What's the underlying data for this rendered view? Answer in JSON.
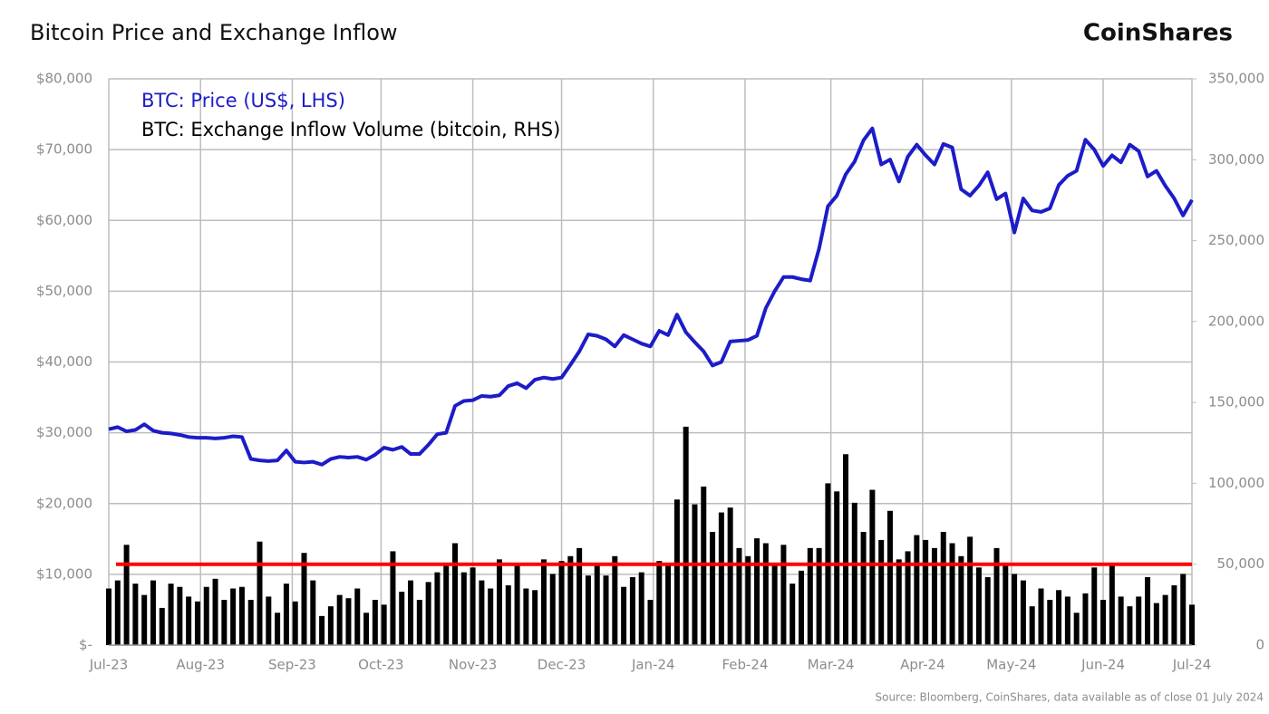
{
  "chart_data": {
    "type": "combo",
    "title": "Bitcoin Price and Exchange Inflow",
    "brand": "CoinShares",
    "source": "Source: Bloomberg, CoinShares, data available as of close 01 July 2024",
    "x": [
      0,
      3,
      6,
      9,
      12,
      15,
      18,
      21,
      24,
      27,
      30,
      33,
      36,
      39,
      42,
      45,
      48,
      51,
      54,
      57,
      60,
      63,
      66,
      69,
      72,
      75,
      78,
      81,
      84,
      87,
      90,
      93,
      96,
      99,
      102,
      105,
      108,
      111,
      114,
      117,
      120,
      123,
      126,
      129,
      132,
      135,
      138,
      141,
      144,
      147,
      150,
      153,
      156,
      159,
      162,
      165,
      168,
      171,
      174,
      177,
      180,
      183,
      186,
      189,
      192,
      195,
      198,
      201,
      204,
      207,
      210,
      213,
      216,
      219,
      222,
      225,
      228,
      231,
      234,
      237,
      240,
      243,
      246,
      249,
      252,
      255,
      258,
      261,
      264,
      267,
      270,
      273,
      276,
      279,
      282,
      285,
      288,
      291,
      294,
      297,
      300,
      303,
      306,
      309,
      312,
      315,
      318,
      321,
      324,
      327,
      330,
      333,
      336,
      339,
      342,
      345,
      348,
      351,
      354,
      357,
      360,
      363,
      366
    ],
    "xlim": [
      0,
      366
    ],
    "xticks": [
      {
        "value": 0,
        "label": "Jul-23"
      },
      {
        "value": 31,
        "label": "Aug-23"
      },
      {
        "value": 62,
        "label": "Sep-23"
      },
      {
        "value": 92,
        "label": "Oct-23"
      },
      {
        "value": 123,
        "label": "Nov-23"
      },
      {
        "value": 153,
        "label": "Dec-23"
      },
      {
        "value": 184,
        "label": "Jan-24"
      },
      {
        "value": 215,
        "label": "Feb-24"
      },
      {
        "value": 244,
        "label": "Mar-24"
      },
      {
        "value": 275,
        "label": "Apr-24"
      },
      {
        "value": 305,
        "label": "May-24"
      },
      {
        "value": 336,
        "label": "Jun-24"
      },
      {
        "value": 366,
        "label": "Jul-24"
      }
    ],
    "ylim": [
      0,
      80000
    ],
    "yticks": [
      {
        "value": 0,
        "label": "$-"
      },
      {
        "value": 10000,
        "label": "$10,000"
      },
      {
        "value": 20000,
        "label": "$20,000"
      },
      {
        "value": 30000,
        "label": "$30,000"
      },
      {
        "value": 40000,
        "label": "$40,000"
      },
      {
        "value": 50000,
        "label": "$50,000"
      },
      {
        "value": 60000,
        "label": "$60,000"
      },
      {
        "value": 70000,
        "label": "$70,000"
      },
      {
        "value": 80000,
        "label": "$80,000"
      }
    ],
    "y2lim": [
      0,
      350000
    ],
    "y2ticks": [
      0,
      {
        "value": 50000,
        "label": "50,000"
      },
      {
        "value": 100000,
        "label": "100,000"
      },
      {
        "value": 150000,
        "label": "150,000"
      },
      {
        "value": 200000,
        "label": "200,000"
      },
      {
        "value": 250000,
        "label": "250,000"
      },
      {
        "value": 300000,
        "label": "300,000"
      },
      {
        "value": 350000,
        "label": "350,000"
      }
    ],
    "grid": true,
    "reference_lines": [
      {
        "value": 50000,
        "axis": "y2",
        "color": "#ff0000"
      }
    ],
    "series": [
      {
        "name": "BTC: Price (US$, LHS)",
        "type": "line",
        "color": "#1c1cc8",
        "values": [
          30500,
          30800,
          30200,
          30400,
          31200,
          30300,
          30000,
          29900,
          29700,
          29400,
          29300,
          29300,
          29200,
          29300,
          29500,
          29400,
          26300,
          26100,
          26000,
          26100,
          27500,
          25900,
          25800,
          25900,
          25500,
          26300,
          26600,
          26500,
          26600,
          26200,
          26900,
          27900,
          27600,
          28000,
          27000,
          27000,
          28300,
          29800,
          30000,
          33800,
          34500,
          34600,
          35200,
          35100,
          35300,
          36600,
          37000,
          36300,
          37500,
          37800,
          37600,
          37800,
          39600,
          41500,
          43900,
          43700,
          43200,
          42200,
          43800,
          43200,
          42600,
          42200,
          44400,
          43800,
          46700,
          44200,
          42800,
          41500,
          39500,
          40000,
          42900,
          43000,
          43100,
          43700,
          47600,
          50000,
          52000,
          52000,
          51700,
          51500,
          56000,
          62000,
          63500,
          66500,
          68300,
          71300,
          73000,
          67900,
          68600,
          65500,
          69000,
          70700,
          69200,
          67900,
          70800,
          70300,
          64400,
          63500,
          64900,
          66800,
          63000,
          63800,
          58300,
          63100,
          61400,
          61200,
          61700,
          65000,
          66300,
          67000,
          71400,
          70000,
          67700,
          69200,
          68200,
          70700,
          69800,
          66200,
          67000,
          64900,
          63100,
          60700,
          62900
        ]
      },
      {
        "name": "BTC: Exchange Inflow Volume (bitcoin, RHS)",
        "type": "bar",
        "axis": "y2",
        "color": "#000000",
        "values": [
          35000,
          40000,
          62000,
          38000,
          31000,
          40000,
          23000,
          38000,
          36000,
          30000,
          27000,
          36000,
          41000,
          28000,
          35000,
          36000,
          28000,
          64000,
          30000,
          20000,
          38000,
          27000,
          57000,
          40000,
          18000,
          24000,
          31000,
          29000,
          35000,
          20000,
          28000,
          25000,
          58000,
          33000,
          40000,
          28000,
          39000,
          45000,
          50000,
          63000,
          45000,
          48000,
          40000,
          35000,
          53000,
          37000,
          50000,
          35000,
          34000,
          53000,
          44000,
          52000,
          55000,
          60000,
          43000,
          50000,
          43000,
          55000,
          36000,
          42000,
          45000,
          28000,
          52000,
          50000,
          90000,
          135000,
          87000,
          98000,
          70000,
          82000,
          85000,
          60000,
          55000,
          66000,
          63000,
          50000,
          62000,
          38000,
          46000,
          60000,
          60000,
          100000,
          95000,
          118000,
          88000,
          70000,
          96000,
          65000,
          83000,
          53000,
          58000,
          68000,
          65000,
          60000,
          70000,
          63000,
          55000,
          67000,
          48000,
          42000,
          60000,
          50000,
          44000,
          40000,
          24000,
          35000,
          28000,
          34000,
          30000,
          20000,
          32000,
          48000,
          28000,
          50000,
          30000,
          24000,
          30000,
          42000,
          26000,
          31000,
          37000,
          44000,
          25000
        ]
      }
    ]
  }
}
